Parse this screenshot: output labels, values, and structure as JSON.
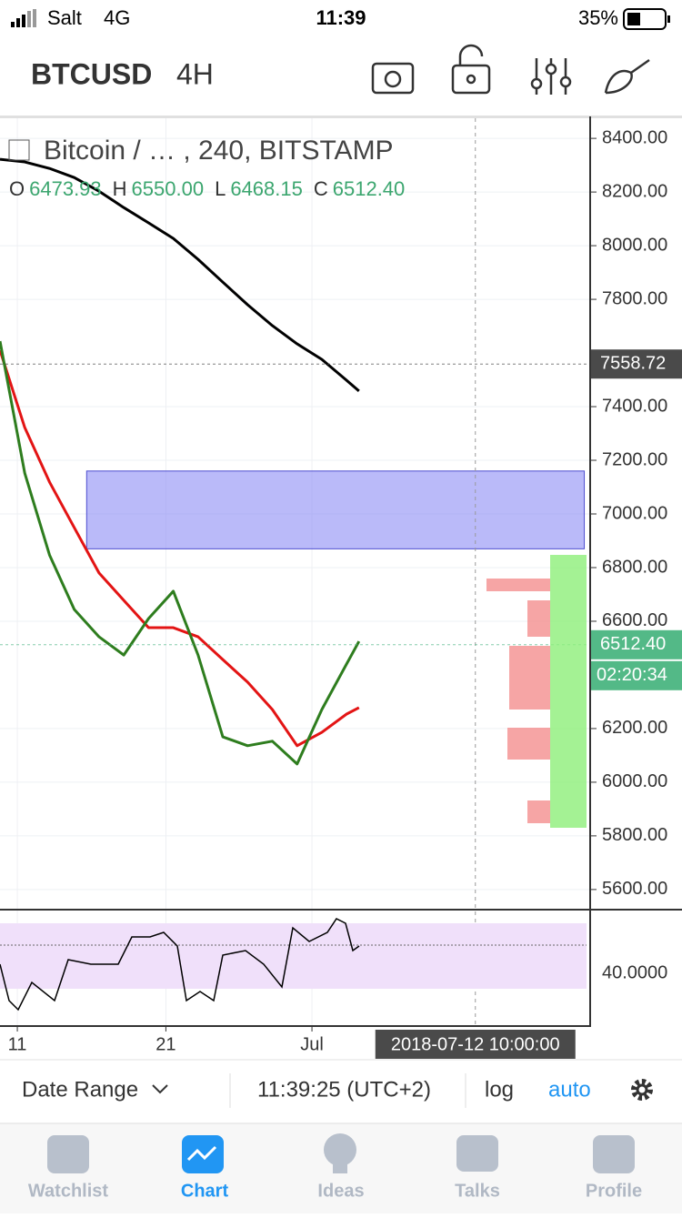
{
  "status_bar": {
    "carrier": "Salt",
    "network": "4G",
    "time": "11:39",
    "battery": "35%"
  },
  "header": {
    "symbol": "BTCUSD",
    "interval": "4H"
  },
  "chart_data": {
    "type": "line",
    "title": "Bitcoin / … , 240, BITSTAMP",
    "legend": [
      {
        "label": "O",
        "value": "6473.93"
      },
      {
        "label": "H",
        "value": "6550.00"
      },
      {
        "label": "L",
        "value": "6468.15"
      },
      {
        "label": "C",
        "value": "6512.40"
      }
    ],
    "x": [
      0,
      10,
      20,
      30,
      40,
      50,
      60,
      70,
      80,
      90,
      100,
      110,
      120,
      130,
      140,
      145
    ],
    "xlim": [
      0,
      238
    ],
    "xticks": [
      {
        "value": 7,
        "label": "11"
      },
      {
        "value": 67,
        "label": "21"
      },
      {
        "value": 126,
        "label": "Jul"
      }
    ],
    "ylim": [
      5525,
      8475
    ],
    "yticks": [
      {
        "value": 8400,
        "label": "8400.00"
      },
      {
        "value": 8200,
        "label": "8200.00"
      },
      {
        "value": 8000,
        "label": "8000.00"
      },
      {
        "value": 7800,
        "label": "7800.00"
      },
      {
        "value": 7400,
        "label": "7400.00"
      },
      {
        "value": 7200,
        "label": "7200.00"
      },
      {
        "value": 7000,
        "label": "7000.00"
      },
      {
        "value": 6800,
        "label": "6800.00"
      },
      {
        "value": 6600,
        "label": "6600.00"
      },
      {
        "value": 6200,
        "label": "6200.00"
      },
      {
        "value": 6000,
        "label": "6000.00"
      },
      {
        "value": 5800,
        "label": "5800.00"
      },
      {
        "value": 5600,
        "label": "5600.00"
      }
    ],
    "grid": true,
    "series": [
      {
        "color": "#000000",
        "values": [
          8322,
          8312,
          8288,
          8254,
          8203,
          8142,
          8085,
          8027,
          7949,
          7864,
          7780,
          7702,
          7634,
          7576,
          7498,
          7458
        ]
      },
      {
        "color": "#e31414",
        "values": [
          7610,
          7322,
          7119,
          6949,
          6780,
          6678,
          6576,
          6576,
          6542,
          6457,
          6373,
          6271,
          6136,
          6186,
          6254,
          6278
        ]
      },
      {
        "color": "#2e7d1e",
        "values": [
          7644,
          7152,
          6847,
          6644,
          6542,
          6474,
          6610,
          6712,
          6474,
          6169,
          6136,
          6153,
          6068,
          6271,
          6441,
          6525
        ]
      }
    ],
    "zone": {
      "top": 7160,
      "bottom": 6870,
      "x": [
        35,
        236
      ],
      "color": "#8c8cf5"
    },
    "markers": [
      {
        "value": 7558.72,
        "label": "7558.72",
        "color": "#4a4a4a"
      },
      {
        "value": 6512.4,
        "label": "6512.40",
        "color": "#53b987"
      }
    ],
    "countdown": "02:20:34",
    "crosshair": {
      "x": 192,
      "label": "2018-07-12 10:00:00"
    },
    "rsi_tick": "40.0000"
  },
  "bottom_bar": {
    "date_range": "Date Range",
    "clock": "11:39:25 (UTC+2)",
    "log": "log",
    "auto": "auto"
  },
  "tabs": [
    "Watchlist",
    "Chart",
    "Ideas",
    "Talks",
    "Profile"
  ]
}
